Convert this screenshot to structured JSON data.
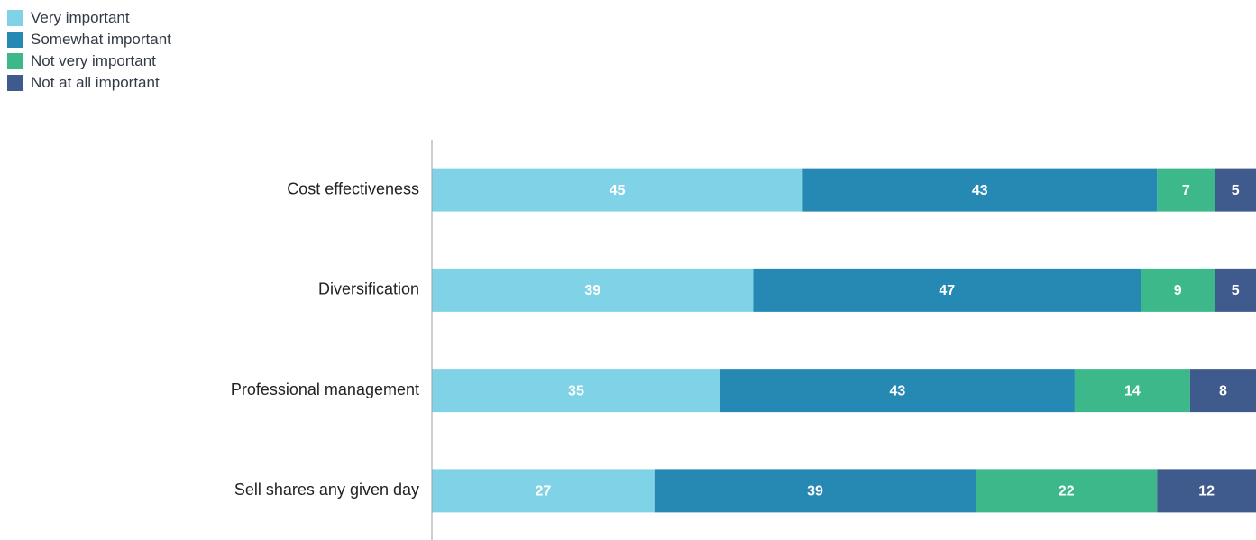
{
  "chart_data": {
    "type": "bar",
    "orientation": "horizontal",
    "stacked": true,
    "categories": [
      "Cost effectiveness",
      "Diversification",
      "Professional management",
      "Sell shares any given day"
    ],
    "series": [
      {
        "name": "Very important",
        "color": "#80d3e6",
        "values": [
          45,
          39,
          35,
          27
        ]
      },
      {
        "name": "Somewhat important",
        "color": "#2689b4",
        "values": [
          43,
          47,
          43,
          39
        ]
      },
      {
        "name": "Not very important",
        "color": "#3db88a",
        "values": [
          7,
          9,
          14,
          22
        ]
      },
      {
        "name": "Not at all important",
        "color": "#3f5a8c",
        "values": [
          5,
          5,
          8,
          12
        ]
      }
    ],
    "xlim": [
      0,
      100
    ],
    "legend_position": "top-left",
    "grid": false
  }
}
